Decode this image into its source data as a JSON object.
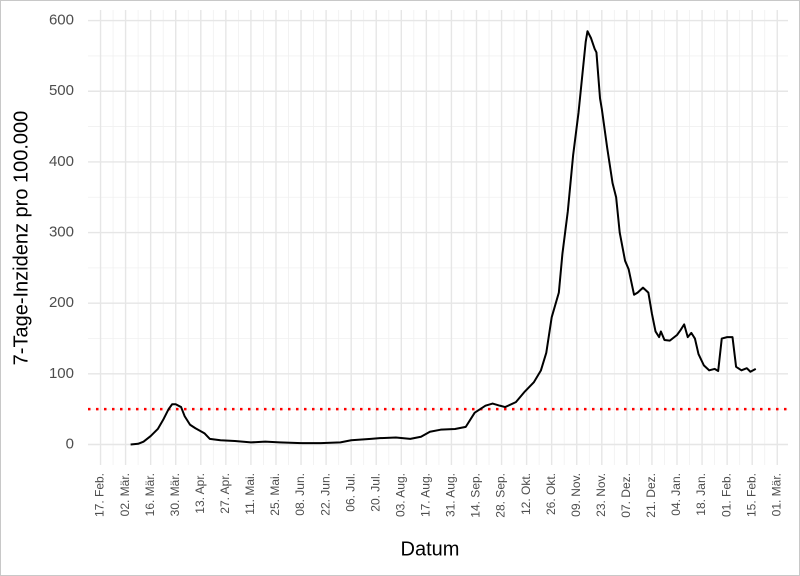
{
  "chart_data": {
    "type": "line",
    "xlabel": "Datum",
    "ylabel": "7-Tage-Inzidenz pro 100.000",
    "x": [
      16.8,
      21,
      24,
      28,
      32,
      35,
      38,
      40,
      42,
      45,
      47,
      50,
      53,
      58,
      61,
      67,
      75,
      84,
      92,
      100,
      112,
      123,
      134,
      140,
      145,
      151,
      156,
      165,
      173,
      179,
      184,
      190,
      198,
      204,
      209,
      215,
      219,
      223,
      226,
      232,
      237,
      242,
      246,
      249,
      252,
      256,
      258,
      261,
      264,
      267,
      269,
      271,
      272,
      274,
      276,
      277,
      279,
      280,
      283,
      286,
      288,
      290,
      293,
      295,
      298,
      300,
      303,
      306,
      308,
      310,
      312,
      313,
      315,
      318,
      322,
      324,
      326,
      328,
      330,
      332,
      334,
      337,
      340,
      343,
      345,
      347,
      350,
      353,
      355,
      358,
      361,
      363,
      366
    ],
    "series": [
      {
        "name": "Inzidenz",
        "color": "#000000",
        "values": [
          0,
          1,
          4,
          12,
          22,
          35,
          50,
          57,
          57,
          53,
          40,
          28,
          23,
          16,
          8,
          6,
          5,
          3,
          4,
          3,
          2,
          2,
          3,
          6,
          7,
          8,
          9,
          10,
          8,
          11,
          18,
          21,
          22,
          25,
          45,
          55,
          58,
          55,
          53,
          60,
          75,
          88,
          105,
          130,
          180,
          215,
          270,
          330,
          410,
          470,
          520,
          570,
          585,
          575,
          560,
          555,
          490,
          475,
          420,
          370,
          350,
          300,
          260,
          248,
          212,
          215,
          222,
          215,
          185,
          160,
          152,
          160,
          148,
          147,
          155,
          162,
          170,
          152,
          158,
          150,
          128,
          112,
          105,
          107,
          104,
          150,
          152,
          152,
          110,
          105,
          108,
          103,
          107
        ]
      }
    ],
    "reference_line": {
      "value": 50,
      "color": "#ff0000"
    },
    "xlim": [
      -7,
      384
    ],
    "ylim": [
      -29,
      615
    ],
    "yticks": [
      0,
      100,
      200,
      300,
      400,
      500,
      600
    ],
    "xticks": [
      {
        "value": 0,
        "label": "17. Feb."
      },
      {
        "value": 14,
        "label": "02. Mär."
      },
      {
        "value": 28,
        "label": "16. Mär."
      },
      {
        "value": 42,
        "label": "30. Mär."
      },
      {
        "value": 56,
        "label": "13. Apr."
      },
      {
        "value": 70,
        "label": "27. Apr."
      },
      {
        "value": 84,
        "label": "11. Mai."
      },
      {
        "value": 98,
        "label": "25. Mai."
      },
      {
        "value": 112,
        "label": "08. Jun."
      },
      {
        "value": 126,
        "label": "22. Jun."
      },
      {
        "value": 140,
        "label": "06. Jul."
      },
      {
        "value": 154,
        "label": "20. Jul."
      },
      {
        "value": 168,
        "label": "03. Aug."
      },
      {
        "value": 182,
        "label": "17. Aug."
      },
      {
        "value": 196,
        "label": "31. Aug."
      },
      {
        "value": 210,
        "label": "14. Sep."
      },
      {
        "value": 224,
        "label": "28. Sep."
      },
      {
        "value": 238,
        "label": "12. Okt."
      },
      {
        "value": 252,
        "label": "26. Okt."
      },
      {
        "value": 266,
        "label": "09. Nov."
      },
      {
        "value": 280,
        "label": "23. Nov."
      },
      {
        "value": 294,
        "label": "07. Dez."
      },
      {
        "value": 308,
        "label": "21. Dez."
      },
      {
        "value": 322,
        "label": "04. Jan."
      },
      {
        "value": 336,
        "label": "18. Jan."
      },
      {
        "value": 350,
        "label": "01. Feb."
      },
      {
        "value": 364,
        "label": "15. Feb."
      },
      {
        "value": 378,
        "label": "01. Mär."
      }
    ],
    "grid": true
  }
}
